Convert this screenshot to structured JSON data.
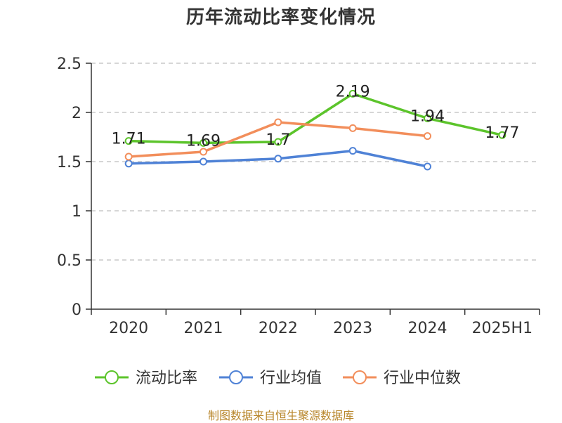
{
  "title": "历年流动比率变化情况",
  "source_note": "制图数据来自恒生聚源数据库",
  "chart_data": {
    "type": "line",
    "categories": [
      "2020",
      "2021",
      "2022",
      "2023",
      "2024",
      "2025H1"
    ],
    "ylim": [
      0,
      2.5
    ],
    "yticks": [
      "0",
      "0.5",
      "1",
      "1.5",
      "2",
      "2.5"
    ],
    "grid": true,
    "legend_position": "bottom",
    "series": [
      {
        "name": "流动比率",
        "color": "#5cc42b",
        "values": [
          1.71,
          1.69,
          1.7,
          2.19,
          1.94,
          1.77
        ],
        "labels": [
          "1.71",
          "1.69",
          "1.7",
          "2.19",
          "1.94",
          "1.77"
        ],
        "show_labels": true
      },
      {
        "name": "行业均值",
        "color": "#4f82d6",
        "values": [
          1.48,
          1.5,
          1.53,
          1.61,
          1.45,
          null
        ],
        "show_labels": false
      },
      {
        "name": "行业中位数",
        "color": "#f28e5b",
        "values": [
          1.55,
          1.6,
          1.9,
          1.84,
          1.76,
          null
        ],
        "show_labels": false
      }
    ]
  }
}
